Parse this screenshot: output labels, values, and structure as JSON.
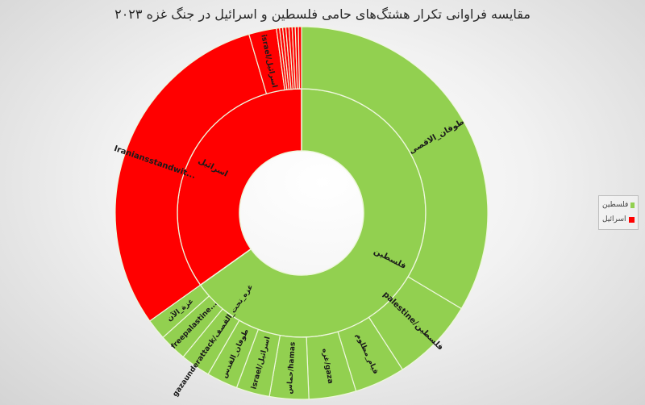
{
  "chart_data": {
    "type": "sunburst",
    "title": "مقایسه فراوانی تکرار هشتگ‌های حامی فلسطین و اسرائیل در جنگ غزه ۲۰۲۳",
    "legend": {
      "placement": "right",
      "entries": [
        "فلسطین",
        "اسرائیل"
      ]
    },
    "colors": {
      "فلسطین": "#92d050",
      "اسرائیل": "#ff0000"
    },
    "groups": [
      {
        "name": "فلسطین",
        "color": "#92d050",
        "children": [
          {
            "label": "طوفان_الاقصی",
            "value": 33.6
          },
          {
            "label": "palestine/فلسطین",
            "value": 7.3
          },
          {
            "label": "قیام_مظلوم",
            "value": 4.4
          },
          {
            "label": "غزه/gaza",
            "value": 4.1
          },
          {
            "label": "حماس/hamas",
            "value": 3.4
          },
          {
            "label": "israel/اسرائیل",
            "value": 2.9
          },
          {
            "label": "طوفان_القدس",
            "value": 2.7
          },
          {
            "label": "gazaunderattack/غزه_تحت_القصف",
            "value": 2.6
          },
          {
            "label": "freepalastine...",
            "value": 2.4
          },
          {
            "label": "غزة_الآن",
            "value": 1.8
          }
        ]
      },
      {
        "name": "اسرائیل",
        "color": "#ff0000",
        "children": [
          {
            "label": "Iraniansstandwit...",
            "value": 30.3
          },
          {
            "label": "israel/اسرائیل",
            "value": 2.4
          },
          {
            "label": "",
            "value": 0.27
          },
          {
            "label": "",
            "value": 0.27
          },
          {
            "label": "",
            "value": 0.27
          },
          {
            "label": "",
            "value": 0.27
          },
          {
            "label": "",
            "value": 0.27
          },
          {
            "label": "",
            "value": 0.27
          },
          {
            "label": "",
            "value": 0.27
          },
          {
            "label": "",
            "value": 0.27
          }
        ]
      }
    ]
  }
}
